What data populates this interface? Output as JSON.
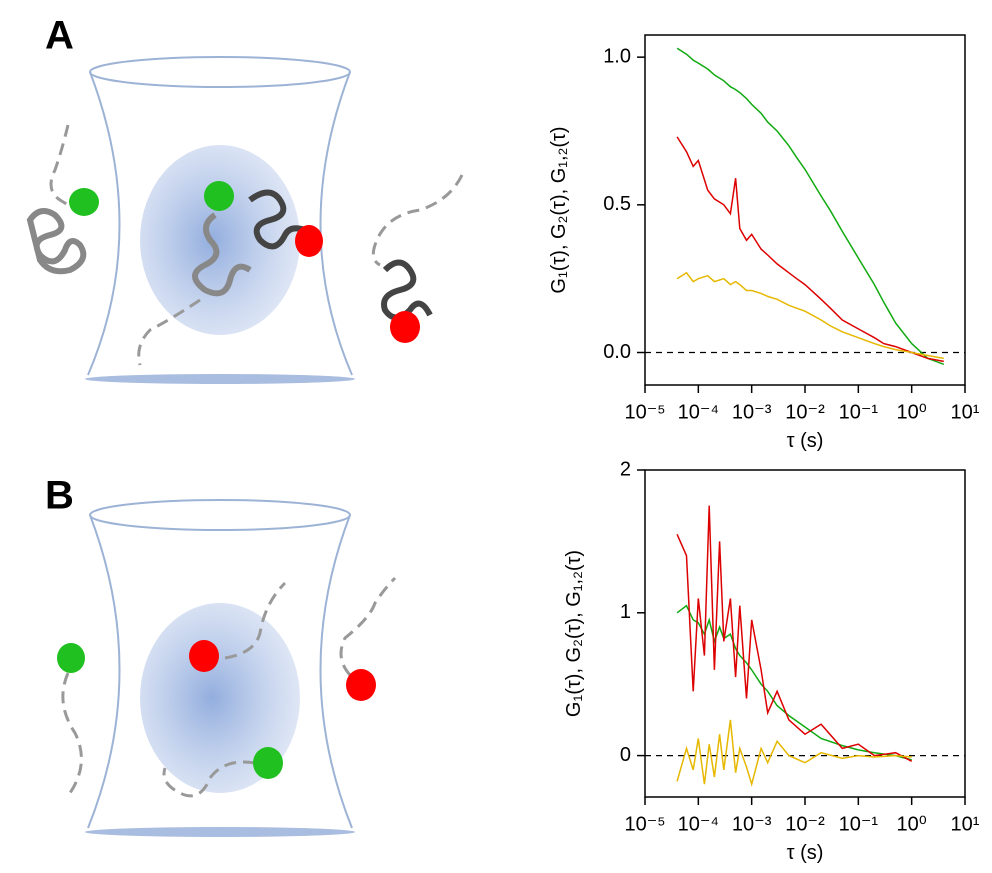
{
  "chart_data": [
    {
      "type": "line",
      "panel": "A",
      "x_label": "τ (s)",
      "y_label": "G₁(τ), G₂(τ), G₁,₂(τ)",
      "xscale": "log",
      "xlim": [
        1e-05,
        10
      ],
      "xticks": [
        {
          "value": 1e-05,
          "label": "10⁻⁵"
        },
        {
          "value": 0.0001,
          "label": "10⁻⁴"
        },
        {
          "value": 0.001,
          "label": "10⁻³"
        },
        {
          "value": 0.01,
          "label": "10⁻²"
        },
        {
          "value": 0.1,
          "label": "10⁻¹"
        },
        {
          "value": 1,
          "label": "10⁰"
        },
        {
          "value": 10,
          "label": "10¹"
        }
      ],
      "ylim": [
        -0.11,
        1.075
      ],
      "yticks": [
        {
          "value": 0,
          "label": "0.0"
        },
        {
          "value": 0.5,
          "label": "0.5"
        },
        {
          "value": 1,
          "label": "1.0"
        }
      ],
      "reference_line": 0,
      "x": [
        4e-05,
        6e-05,
        8e-05,
        0.0001,
        0.00015,
        0.0002,
        0.0003,
        0.0004,
        0.0005,
        0.0006,
        0.0008,
        0.001,
        0.0015,
        0.002,
        0.003,
        0.005,
        0.007,
        0.01,
        0.02,
        0.03,
        0.05,
        0.1,
        0.2,
        0.3,
        0.5,
        1,
        2,
        4
      ],
      "series": [
        {
          "color": "#11aa11",
          "values": [
            1.03,
            1.01,
            0.99,
            0.98,
            0.96,
            0.94,
            0.92,
            0.9,
            0.89,
            0.88,
            0.86,
            0.84,
            0.81,
            0.78,
            0.75,
            0.7,
            0.66,
            0.62,
            0.53,
            0.48,
            0.41,
            0.32,
            0.23,
            0.17,
            0.1,
            0.03,
            -0.02,
            -0.04
          ]
        },
        {
          "color": "#dd0000",
          "values": [
            0.73,
            0.68,
            0.63,
            0.65,
            0.55,
            0.52,
            0.5,
            0.47,
            0.59,
            0.42,
            0.38,
            0.4,
            0.35,
            0.33,
            0.3,
            0.27,
            0.25,
            0.23,
            0.18,
            0.15,
            0.11,
            0.08,
            0.05,
            0.03,
            0.02,
            0.0,
            -0.02,
            -0.03
          ]
        },
        {
          "color": "#e6b800",
          "values": [
            0.25,
            0.27,
            0.24,
            0.25,
            0.26,
            0.24,
            0.25,
            0.23,
            0.24,
            0.23,
            0.21,
            0.21,
            0.2,
            0.19,
            0.18,
            0.16,
            0.15,
            0.14,
            0.11,
            0.09,
            0.07,
            0.05,
            0.03,
            0.02,
            0.01,
            0.0,
            -0.01,
            -0.02
          ]
        }
      ]
    },
    {
      "type": "line",
      "panel": "B",
      "x_label": "τ (s)",
      "y_label": "G₁(τ), G₂(τ), G₁,₂(τ)",
      "xscale": "log",
      "xlim": [
        1e-05,
        10
      ],
      "xticks": [
        {
          "value": 1e-05,
          "label": "10⁻⁵"
        },
        {
          "value": 0.0001,
          "label": "10⁻⁴"
        },
        {
          "value": 0.001,
          "label": "10⁻³"
        },
        {
          "value": 0.01,
          "label": "10⁻²"
        },
        {
          "value": 0.1,
          "label": "10⁻¹"
        },
        {
          "value": 1,
          "label": "10⁰"
        },
        {
          "value": 10,
          "label": "10¹"
        }
      ],
      "ylim": [
        -0.29,
        2
      ],
      "yticks": [
        0,
        1,
        2
      ],
      "reference_line": 0,
      "x": [
        4e-05,
        6e-05,
        8e-05,
        0.0001,
        0.00013,
        0.00016,
        0.0002,
        0.00025,
        0.0003,
        0.0004,
        0.0005,
        0.0006,
        0.0008,
        0.001,
        0.0015,
        0.002,
        0.003,
        0.005,
        0.01,
        0.02,
        0.05,
        0.1,
        0.2,
        0.5,
        1
      ],
      "series": [
        {
          "color": "#11aa11",
          "values": [
            1.0,
            1.05,
            0.95,
            0.93,
            0.85,
            0.95,
            0.8,
            0.9,
            0.82,
            0.85,
            0.75,
            0.7,
            0.65,
            0.6,
            0.5,
            0.45,
            0.35,
            0.28,
            0.2,
            0.12,
            0.07,
            0.04,
            0.02,
            0.0,
            -0.03
          ]
        },
        {
          "color": "#dd0000",
          "values": [
            1.55,
            1.4,
            0.45,
            1.1,
            0.7,
            1.75,
            0.6,
            1.5,
            0.8,
            1.1,
            0.55,
            1.05,
            0.4,
            0.95,
            0.6,
            0.3,
            0.45,
            0.25,
            0.15,
            0.22,
            0.05,
            0.08,
            0.0,
            0.02,
            -0.04
          ]
        },
        {
          "color": "#e6b800",
          "values": [
            -0.18,
            0.05,
            -0.1,
            0.12,
            -0.2,
            0.08,
            -0.15,
            0.15,
            -0.1,
            0.25,
            -0.12,
            0.05,
            -0.08,
            -0.2,
            0.05,
            -0.05,
            0.1,
            0.0,
            -0.05,
            0.02,
            -0.02,
            0.0,
            -0.01,
            0.0,
            -0.01
          ]
        }
      ]
    }
  ]
}
